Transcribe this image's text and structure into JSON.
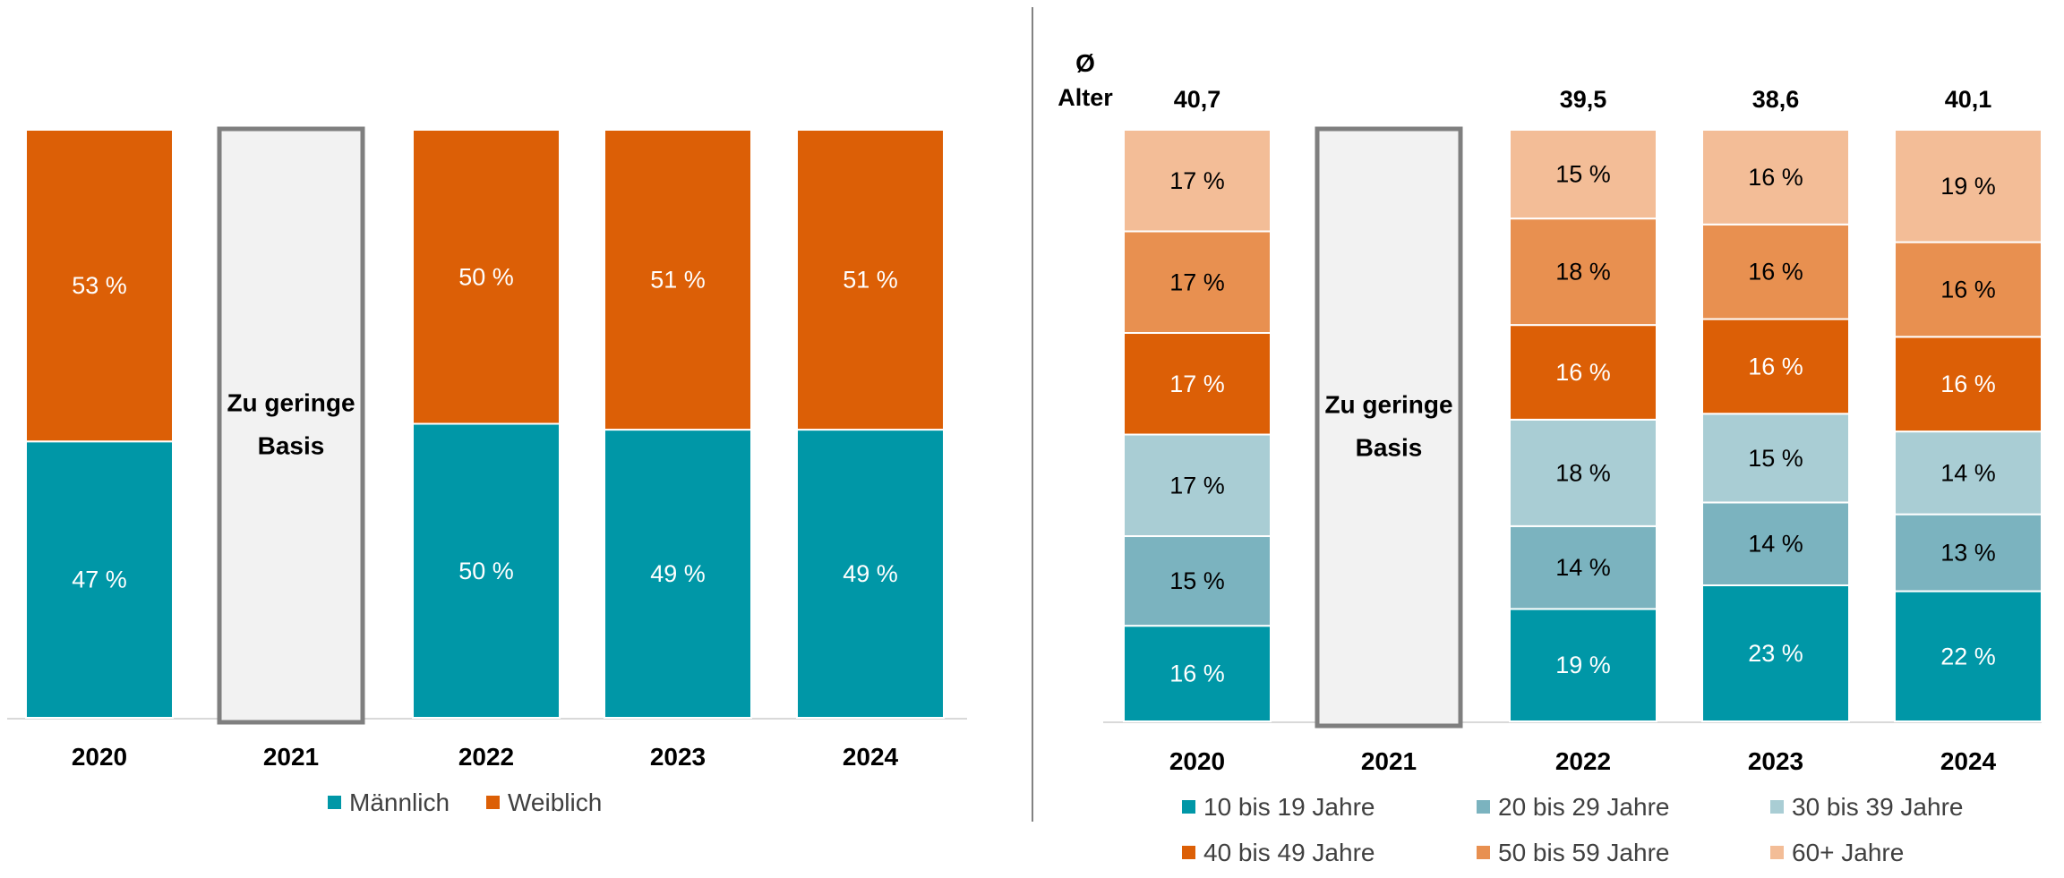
{
  "colors": {
    "maennlich": "#0097A7",
    "weiblich": "#DC5F06",
    "age_10_19": "#0097A7",
    "age_20_29": "#7BB3BF",
    "age_30_39": "#A9CDD4",
    "age_40_49": "#DC5F06",
    "age_50_59": "#E89050",
    "age_60_plus": "#F3BD97",
    "placeholder_fill": "#F2F2F2",
    "placeholder_border": "#7F7F7F",
    "axis": "#D9D9D9",
    "divider": "#595959"
  },
  "missing_label_line1": "Zu geringe",
  "missing_label_line2": "Basis",
  "avg_header_symbol": "Ø",
  "avg_header_label": "Alter",
  "chart_data": [
    {
      "type": "bar",
      "stacked": true,
      "percent": true,
      "categories": [
        "2020",
        "2021",
        "2022",
        "2023",
        "2024"
      ],
      "missing_category": "2021",
      "series": [
        {
          "name": "Männlich",
          "color_key": "maennlich",
          "values": [
            47,
            null,
            50,
            49,
            49
          ],
          "labels": [
            "47 %",
            "",
            "50 %",
            "49 %",
            "49 %"
          ]
        },
        {
          "name": "Weiblich",
          "color_key": "weiblich",
          "values": [
            53,
            null,
            50,
            51,
            51
          ],
          "labels": [
            "53 %",
            "",
            "50 %",
            "51 %",
            "51 %"
          ]
        }
      ],
      "legend_position": "bottom"
    },
    {
      "type": "bar",
      "stacked": true,
      "percent": true,
      "categories": [
        "2020",
        "2021",
        "2022",
        "2023",
        "2024"
      ],
      "missing_category": "2021",
      "average_age": [
        "40,7",
        "",
        "39,5",
        "38,6",
        "40,1"
      ],
      "series": [
        {
          "name": "10 bis 19 Jahre",
          "color_key": "age_10_19",
          "values": [
            16,
            null,
            19,
            23,
            22
          ],
          "labels": [
            "16 %",
            "",
            "19 %",
            "23 %",
            "22 %"
          ]
        },
        {
          "name": "20 bis 29 Jahre",
          "color_key": "age_20_29",
          "values": [
            15,
            null,
            14,
            14,
            13
          ],
          "labels": [
            "15 %",
            "",
            "14 %",
            "14 %",
            "13 %"
          ]
        },
        {
          "name": "30 bis 39 Jahre",
          "color_key": "age_30_39",
          "values": [
            17,
            null,
            18,
            15,
            14
          ],
          "labels": [
            "17 %",
            "",
            "18 %",
            "15 %",
            "14 %"
          ]
        },
        {
          "name": "40 bis 49 Jahre",
          "color_key": "age_40_49",
          "values": [
            17,
            null,
            16,
            16,
            16
          ],
          "labels": [
            "17 %",
            "",
            "16 %",
            "16 %",
            "16 %"
          ]
        },
        {
          "name": "50 bis 59 Jahre",
          "color_key": "age_50_59",
          "values": [
            17,
            null,
            18,
            16,
            16
          ],
          "labels": [
            "17 %",
            "",
            "18 %",
            "16 %",
            "16 %"
          ]
        },
        {
          "name": "60+ Jahre",
          "color_key": "age_60_plus",
          "values": [
            17,
            null,
            15,
            16,
            19
          ],
          "labels": [
            "17 %",
            "",
            "15 %",
            "16 %",
            "19 %"
          ]
        }
      ],
      "legend_position": "bottom"
    }
  ]
}
